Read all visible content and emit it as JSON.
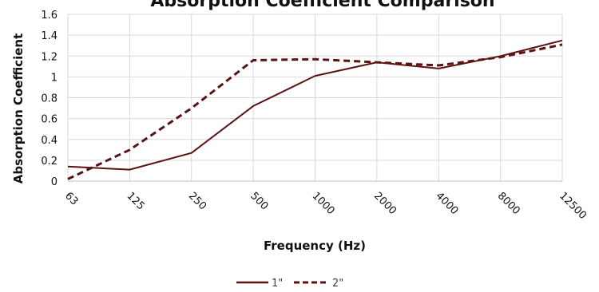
{
  "chart_data": {
    "type": "line",
    "title": "Absorption Coefficient Comparison",
    "xlabel": "Frequency (Hz)",
    "ylabel": "Absorption Coefficient",
    "categories": [
      "63",
      "125",
      "250",
      "500",
      "1000",
      "2000",
      "4000",
      "8000",
      "12500"
    ],
    "yticks": [
      "0",
      "0.2",
      "0.4",
      "0.6",
      "0.8",
      "1",
      "1.2",
      "1.4",
      "1.6"
    ],
    "ylim": [
      0,
      1.6
    ],
    "grid": true,
    "legend_position": "bottom",
    "series": [
      {
        "name": "1\"",
        "values": [
          0.14,
          0.11,
          0.27,
          0.72,
          1.01,
          1.14,
          1.08,
          1.2,
          1.35
        ],
        "color": "#5a1212",
        "dash": "solid"
      },
      {
        "name": "2\"",
        "values": [
          0.02,
          0.3,
          0.7,
          1.16,
          1.17,
          1.14,
          1.11,
          1.19,
          1.31
        ],
        "color": "#5a1212",
        "dash": "dashed"
      }
    ]
  }
}
